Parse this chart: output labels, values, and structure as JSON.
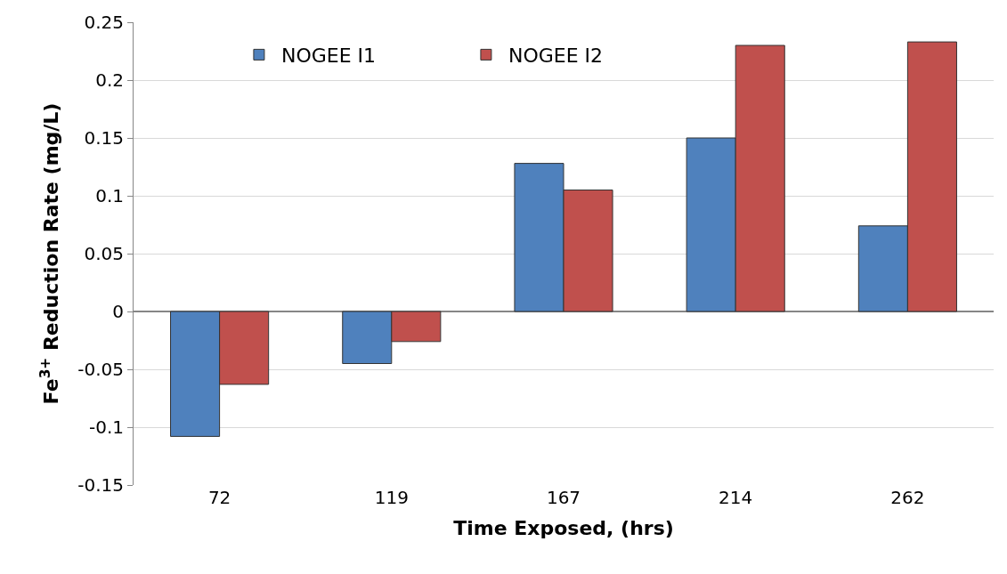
{
  "chart_data": {
    "type": "bar",
    "xlabel": "Time Exposed, (hrs)",
    "ylabel": "Fe$^{3+}$ Reduction Rate (mg/L)",
    "categories": [
      "72",
      "119",
      "167",
      "214",
      "262"
    ],
    "series": [
      {
        "name": "NOGEE I1",
        "color": "#4f81bd",
        "values": [
          -0.108,
          -0.045,
          0.128,
          0.15,
          0.074
        ]
      },
      {
        "name": "NOGEE I2",
        "color": "#c0504d",
        "values": [
          -0.063,
          -0.026,
          0.105,
          0.23,
          0.233
        ]
      }
    ],
    "ylim": [
      -0.15,
      0.25
    ],
    "yticks": [
      -0.15,
      -0.1,
      -0.05,
      0,
      0.05,
      0.1,
      0.15,
      0.2,
      0.25
    ],
    "grid": "y",
    "legend": "top left"
  }
}
